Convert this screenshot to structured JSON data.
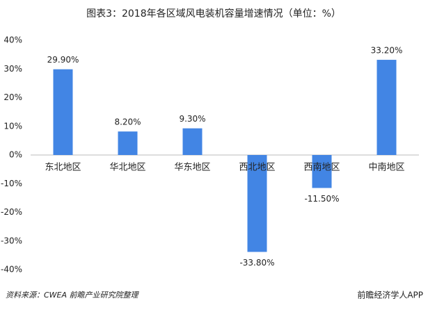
{
  "chart_data": {
    "type": "bar",
    "title": "图表3：2018年各区域风电装机容量增速情况（单位：%）",
    "categories": [
      "东北地区",
      "华北地区",
      "华东地区",
      "西北地区",
      "西南地区",
      "中南地区"
    ],
    "values": [
      29.9,
      8.2,
      9.3,
      -33.8,
      -11.5,
      33.2
    ],
    "value_labels": [
      "29.90%",
      "8.20%",
      "9.30%",
      "-33.80%",
      "-11.50%",
      "33.20%"
    ],
    "color": "#4285e4",
    "ylim": [
      -40,
      40
    ],
    "yticks": [
      {
        "value": -40,
        "label": "-40%"
      },
      {
        "value": -30,
        "label": "-30%"
      },
      {
        "value": -20,
        "label": "-20%"
      },
      {
        "value": -10,
        "label": "-10%"
      },
      {
        "value": 0,
        "label": "0%"
      },
      {
        "value": 10,
        "label": "10%"
      },
      {
        "value": 20,
        "label": "20%"
      },
      {
        "value": 30,
        "label": "30%"
      },
      {
        "value": 40,
        "label": "40%"
      }
    ],
    "grid": false
  },
  "source": "资料来源：CWEA  前瞻产业研究院整理",
  "watermark": "前瞻经济学人APP"
}
